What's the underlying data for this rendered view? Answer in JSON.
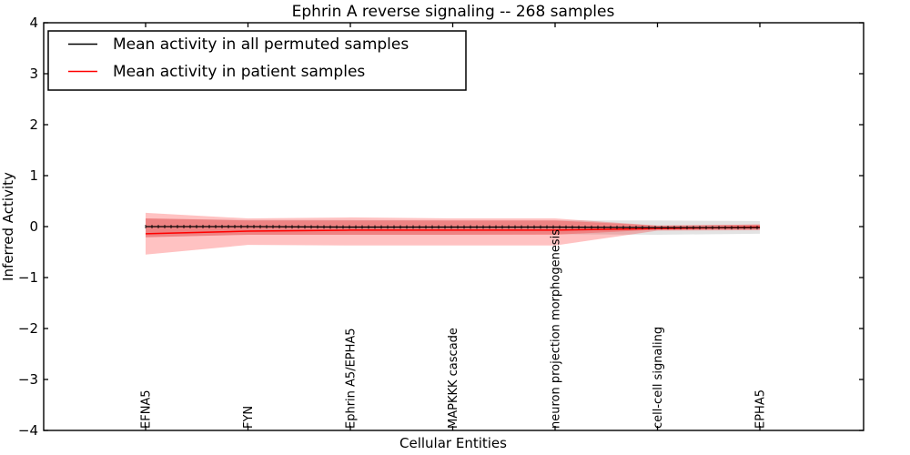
{
  "title": "Ephrin A  reverse signaling -- 268 samples",
  "axes": {
    "xlabel": "Cellular Entities",
    "ylabel": "Inferred Activity",
    "ytick_labels": [
      "4",
      "3",
      "2",
      "1",
      "0",
      "−1",
      "−2",
      "−3",
      "−4"
    ],
    "yticks": [
      4,
      3,
      2,
      1,
      0,
      -1,
      -2,
      -3,
      -4
    ],
    "ylim": [
      -4,
      4
    ]
  },
  "legend": {
    "items": [
      {
        "label": "Mean activity in all permuted samples",
        "color": "#000000"
      },
      {
        "label": "Mean activity in patient samples",
        "color": "#ff0000"
      }
    ]
  },
  "colors": {
    "permuted_line": "#000000",
    "patient_line": "#ff0000",
    "permuted_band_fill": "rgba(0,0,0,0.11)",
    "patient_band_fill": "rgba(255,0,0,0.24)",
    "frame": "#000000",
    "background": "#ffffff"
  },
  "chart_data": {
    "type": "line",
    "title": "Ephrin A  reverse signaling -- 268 samples",
    "xlabel": "Cellular Entities",
    "ylabel": "Inferred Activity",
    "ylim": [
      -4,
      4
    ],
    "yticks": [
      -4,
      -3,
      -2,
      -1,
      0,
      1,
      2,
      3,
      4
    ],
    "grid": false,
    "legend_position": "upper left",
    "categories": [
      "EFNA5",
      "FYN",
      "Ephrin A5/EPHA5",
      "MAPKKK cascade",
      "neuron projection morphogenesis",
      "cell-cell signaling",
      "EPHA5"
    ],
    "series": [
      {
        "name": "Mean activity in all permuted samples",
        "color": "#000000",
        "values": [
          0.0,
          0.0,
          -0.01,
          -0.01,
          -0.01,
          -0.02,
          -0.02
        ],
        "band_upper": [
          0.16,
          0.13,
          0.13,
          0.12,
          0.12,
          0.12,
          0.11
        ],
        "band_lower": [
          -0.21,
          -0.16,
          -0.16,
          -0.16,
          -0.15,
          -0.16,
          -0.14
        ]
      },
      {
        "name": "Mean activity in patient samples",
        "color": "#ff0000",
        "values": [
          -0.14,
          -0.09,
          -0.07,
          -0.07,
          -0.07,
          -0.04,
          -0.01
        ],
        "band_upper": [
          0.27,
          0.16,
          0.18,
          0.16,
          0.16,
          0.02,
          0.04
        ],
        "band_lower": [
          -0.55,
          -0.36,
          -0.37,
          -0.37,
          -0.37,
          -0.08,
          -0.07
        ],
        "inner_band_upper": [
          0.16,
          0.12,
          0.12,
          0.12,
          0.12,
          0.02,
          0.04
        ],
        "inner_band_lower": [
          -0.21,
          -0.16,
          -0.16,
          -0.16,
          -0.16,
          -0.06,
          -0.06
        ]
      }
    ]
  }
}
